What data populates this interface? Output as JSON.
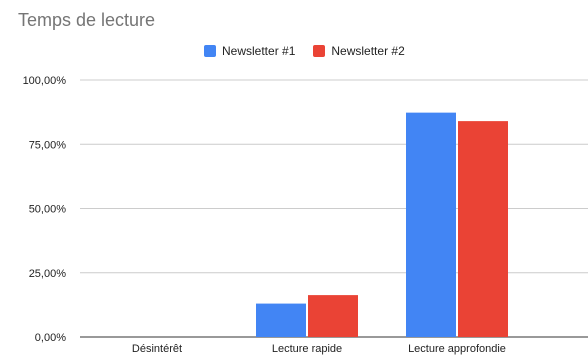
{
  "chart_data": {
    "type": "bar",
    "title": "Temps de lecture",
    "categories": [
      "Désintérêt",
      "Lecture rapide",
      "Lecture approfondie"
    ],
    "series": [
      {
        "name": "Newsletter #1",
        "color": "#4285F4",
        "values": [
          0,
          13,
          87.3
        ]
      },
      {
        "name": "Newsletter #2",
        "color": "#EA4335",
        "values": [
          0,
          16.3,
          84
        ]
      }
    ],
    "ylim": [
      0,
      100
    ],
    "yticks": [
      {
        "value": 0,
        "label": "0,00%"
      },
      {
        "value": 25,
        "label": "25,00%"
      },
      {
        "value": 50,
        "label": "50,00%"
      },
      {
        "value": 75,
        "label": "75,00%"
      },
      {
        "value": 100,
        "label": "100,00%"
      }
    ],
    "xlabel": "",
    "ylabel": "",
    "grid": true,
    "legend_position": "top"
  }
}
